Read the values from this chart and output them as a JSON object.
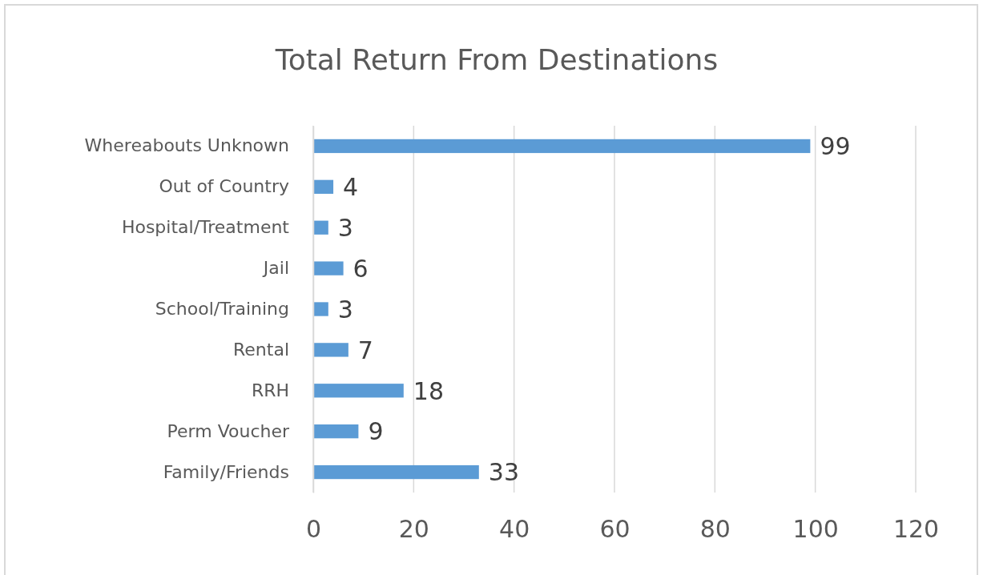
{
  "chart_data": {
    "type": "bar",
    "orientation": "horizontal",
    "title": "Total Return From Destinations",
    "categories": [
      "Whereabouts Unknown",
      "Out of Country",
      "Hospital/Treatment",
      "Jail",
      "School/Training",
      "Rental",
      "RRH",
      "Perm Voucher",
      "Family/Friends"
    ],
    "values": [
      99,
      4,
      3,
      6,
      3,
      7,
      18,
      9,
      33
    ],
    "color": "#5b9bd5",
    "xlim": [
      0,
      120
    ],
    "xticks": [
      0,
      20,
      40,
      60,
      80,
      100,
      120
    ],
    "grid": "x",
    "data_labels": true
  }
}
